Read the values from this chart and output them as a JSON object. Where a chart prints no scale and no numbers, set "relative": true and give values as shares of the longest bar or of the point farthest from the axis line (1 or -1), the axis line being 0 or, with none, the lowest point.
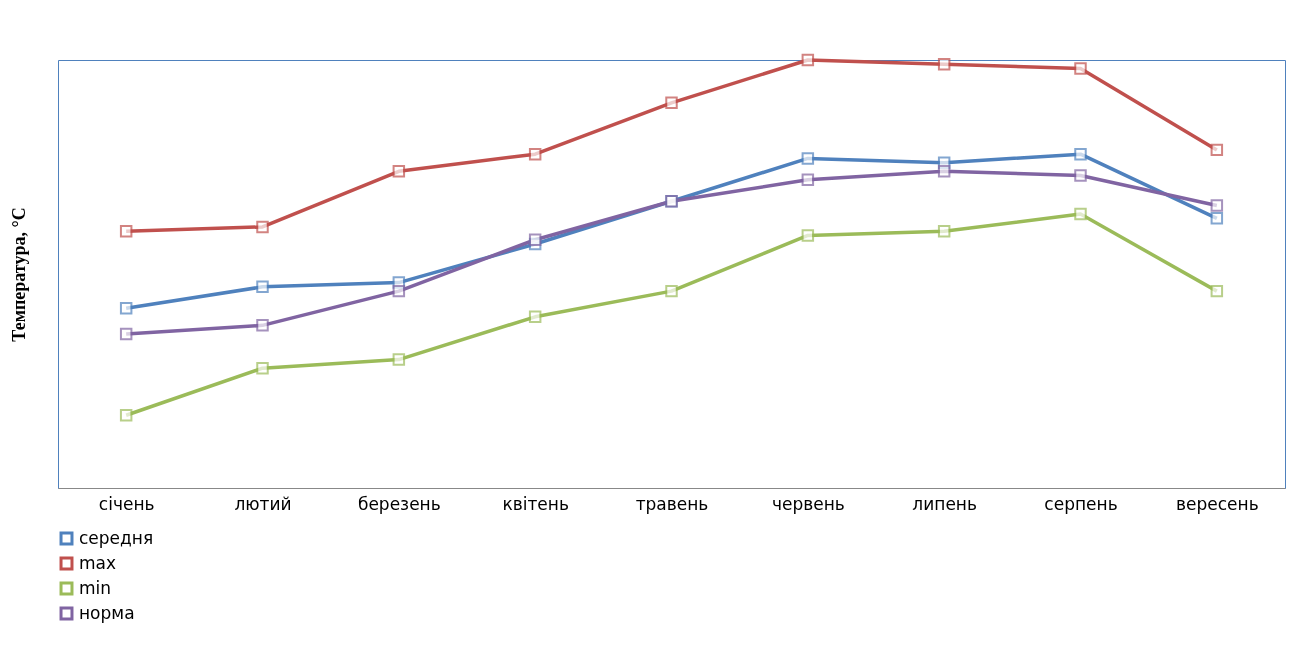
{
  "chart_data": {
    "type": "line",
    "ylabel": "Температура, °C",
    "relative": true,
    "legend": "bottom",
    "marker": "square",
    "line_style": "solid",
    "categories": [
      "січень",
      "лютий",
      "березень",
      "квітень",
      "травень",
      "червень",
      "липень",
      "серпень",
      "вересень"
    ],
    "series": [
      {
        "name": "середня",
        "color": "#4f81bd",
        "values": [
          0.42,
          0.47,
          0.48,
          0.57,
          0.67,
          0.77,
          0.76,
          0.78,
          0.63
        ]
      },
      {
        "name": "max",
        "color": "#c0504d",
        "values": [
          0.6,
          0.61,
          0.74,
          0.78,
          0.9,
          1.0,
          0.99,
          0.98,
          0.79
        ]
      },
      {
        "name": "min",
        "color": "#9bbb59",
        "values": [
          0.17,
          0.28,
          0.3,
          0.4,
          0.46,
          0.59,
          0.6,
          0.64,
          0.46
        ]
      },
      {
        "name": "норма",
        "color": "#8064a2",
        "values": [
          0.36,
          0.38,
          0.46,
          0.58,
          0.67,
          0.72,
          0.74,
          0.73,
          0.66
        ]
      }
    ]
  }
}
